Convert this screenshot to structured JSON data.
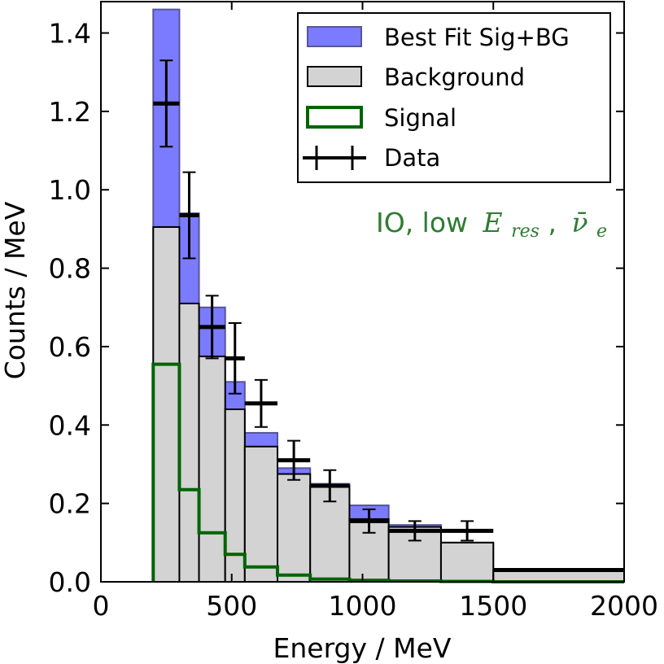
{
  "chart_data": {
    "type": "histogram",
    "xlabel": "Energy / MeV",
    "ylabel": "Counts / MeV",
    "xlim": [
      0,
      2000
    ],
    "ylim": [
      0,
      1.48
    ],
    "xticks": [
      0,
      500,
      1000,
      1500,
      2000
    ],
    "yticks": [
      "0.0",
      "0.2",
      "0.4",
      "0.6",
      "0.8",
      "1.0",
      "1.2",
      "1.4"
    ],
    "bin_edges": [
      200,
      300,
      375,
      475,
      550,
      675,
      800,
      950,
      1100,
      1300,
      1500,
      2000
    ],
    "series": [
      {
        "name": "Best Fit Sig+BG",
        "values": [
          1.46,
          0.94,
          0.7,
          0.51,
          0.38,
          0.29,
          0.25,
          0.195,
          0.145,
          0.1,
          0.028
        ]
      },
      {
        "name": "Background",
        "values": [
          0.905,
          0.71,
          0.575,
          0.44,
          0.345,
          0.275,
          0.245,
          0.16,
          0.14,
          0.1,
          0.028
        ]
      },
      {
        "name": "Signal",
        "values": [
          0.555,
          0.235,
          0.125,
          0.07,
          0.038,
          0.017,
          0.007,
          0.004,
          0.002,
          0.001,
          0.0
        ]
      }
    ],
    "data_points": {
      "name": "Data",
      "x": [
        250,
        337.5,
        425,
        512.5,
        612.5,
        737.5,
        875,
        1025,
        1200,
        1400,
        1750
      ],
      "xerr": [
        50,
        37.5,
        50,
        37.5,
        62.5,
        62.5,
        75,
        75,
        100,
        100,
        250
      ],
      "y": [
        1.22,
        0.935,
        0.65,
        0.57,
        0.455,
        0.31,
        0.245,
        0.155,
        0.13,
        0.13,
        0.03
      ],
      "yerr": [
        0.11,
        0.11,
        0.08,
        0.09,
        0.06,
        0.05,
        0.04,
        0.03,
        0.025,
        0.025,
        0.0
      ]
    },
    "legend": {
      "position": "top-right",
      "entries": [
        "Best Fit Sig+BG",
        "Background",
        "Signal",
        "Data"
      ]
    },
    "annotation": {
      "text": "IO, low",
      "math_symbol": "E",
      "math_subscript": "res",
      "nu_symbol": "ν̄",
      "nu_subscript": "e"
    },
    "colors": {
      "best_fit": "#7b7bff",
      "best_fit_edge": "#55559a",
      "background": "#d3d3d3",
      "signal": "#006400",
      "data": "#000000",
      "annotation": "#2e7d32"
    }
  }
}
